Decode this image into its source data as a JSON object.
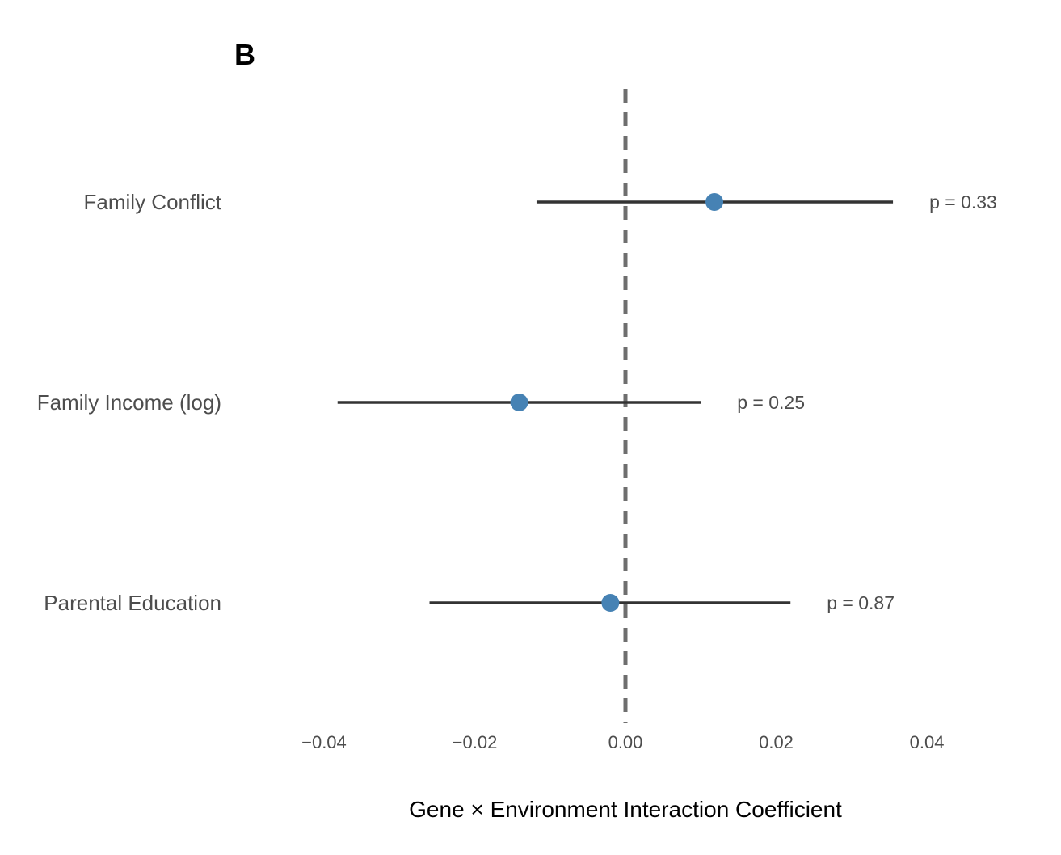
{
  "panel_label": "B",
  "colors": {
    "point": "#4682b4",
    "errorbar": "#333333",
    "reference_line": "#6e6e6e",
    "text": "#4d4d4d"
  },
  "chart_data": {
    "type": "forest",
    "xlabel": "Gene × Environment Interaction Coefficient",
    "xlim": [
      -0.046,
      0.046
    ],
    "xticks": [
      -0.04,
      -0.02,
      0.0,
      0.02,
      0.04
    ],
    "xtick_labels": [
      "−0.04",
      "−0.02",
      "0.00",
      "0.02",
      "0.04"
    ],
    "reference_line": 0,
    "grid": false,
    "rows": [
      {
        "label": "Family Conflict",
        "estimate": 0.0118,
        "ci_low": -0.0118,
        "ci_high": 0.0355,
        "p_label": "p = 0.33"
      },
      {
        "label": "Family Income (log)",
        "estimate": -0.0141,
        "ci_low": -0.0382,
        "ci_high": 0.01,
        "p_label": "p = 0.25"
      },
      {
        "label": "Parental Education",
        "estimate": -0.002,
        "ci_low": -0.026,
        "ci_high": 0.0219,
        "p_label": "p = 0.87"
      }
    ]
  }
}
